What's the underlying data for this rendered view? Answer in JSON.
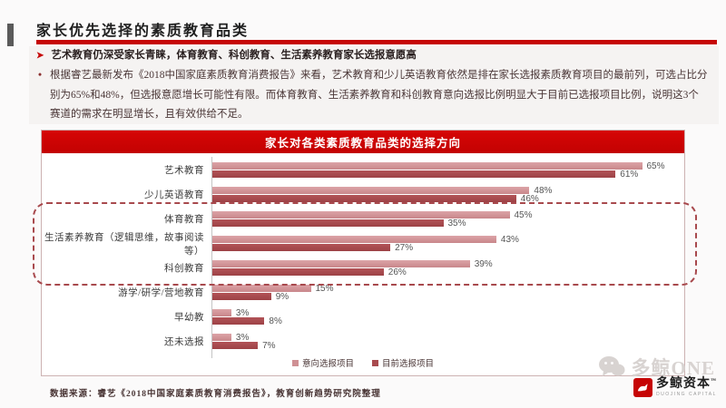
{
  "slide": {
    "title": "家长优先选择的素质教育品类",
    "accent_color": "#c60505"
  },
  "bullets": {
    "point1_marker": "➤",
    "point1": "艺术教育仍深受家长青睐，体育教育、科创教育、生活素养教育家长选报意愿高",
    "point2_marker": "•",
    "point2": "根据睿艺最新发布《2018中国家庭素质教育消费报告》来看，艺术教育和少儿英语教育依然是排在家长选报素质教育项目的最前列，可选占比分别为65%和48%，但选报意愿增长可能性有限。而体育教育、生活素养教育和科创教育意向选报比例明显大于目前已选报项目比例，说明这3个赛道的需求在明显增长，且有效供给不足。"
  },
  "chart_data": {
    "type": "bar",
    "orientation": "horizontal",
    "title": "家长对各类素质教育品类的选择方向",
    "categories": [
      "艺术教育",
      "少儿英语教育",
      "体育教育",
      "生活素养教育（逻辑思维，故事阅读等）",
      "科创教育",
      "游学/研学/营地教育",
      "早幼教",
      "还未选报"
    ],
    "series": [
      {
        "name": "意向选报项目",
        "color": "#cf9094",
        "values": [
          65,
          48,
          45,
          43,
          39,
          15,
          3,
          3
        ]
      },
      {
        "name": "目前选报项目",
        "color": "#a84a4e",
        "values": [
          61,
          46,
          35,
          27,
          26,
          9,
          8,
          7
        ]
      }
    ],
    "value_suffix": "%",
    "xlim": [
      0,
      71
    ],
    "grid": false,
    "legend_position": "bottom",
    "highlighted_categories": [
      "体育教育",
      "生活素养教育（逻辑思维，故事阅读等）",
      "科创教育"
    ]
  },
  "footer": {
    "source": "数据来源：睿艺《2018中国家庭素质教育消费报告》，教育创新趋势研究院整理"
  },
  "watermark": {
    "text": "多鲸ONE"
  },
  "brand": {
    "name": "多鲸资本",
    "tm": "™",
    "subtitle": "DUOJING CAPITAL"
  }
}
